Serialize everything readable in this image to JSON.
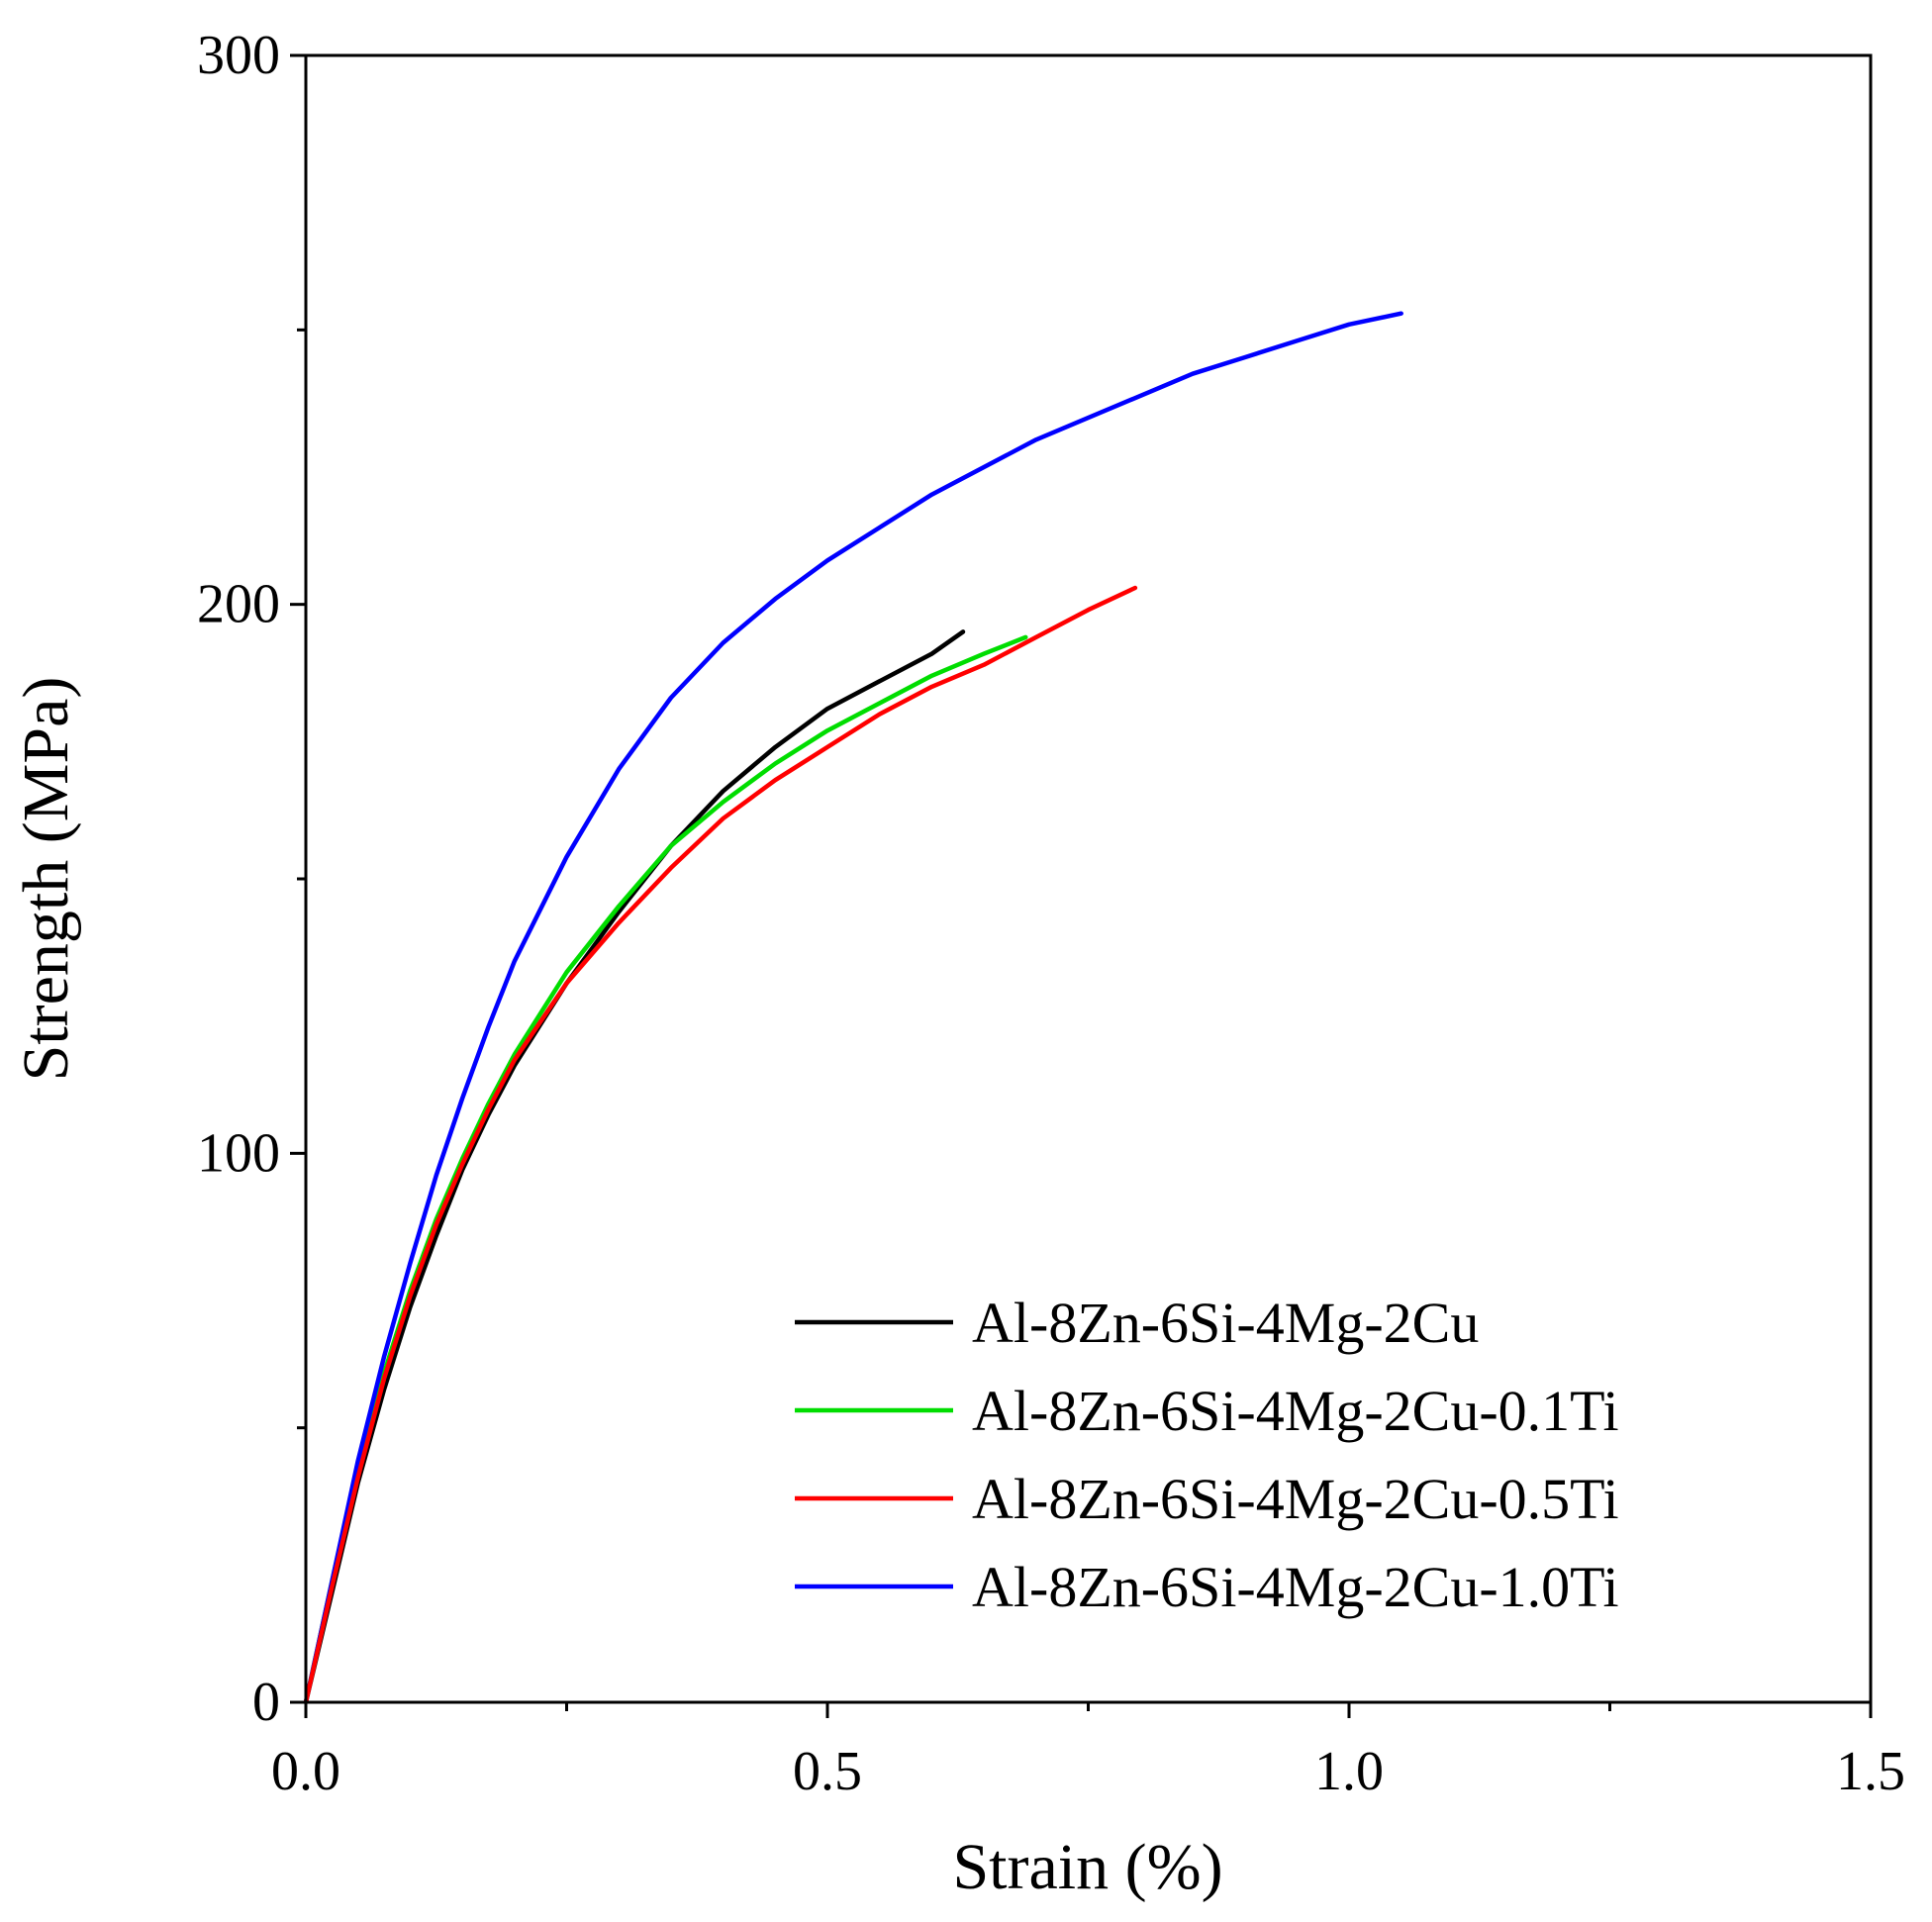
{
  "chart_data": {
    "type": "line",
    "title": "",
    "xlabel": "Strain (%)",
    "ylabel": "Strength (MPa)",
    "xlim": [
      0,
      1.5
    ],
    "ylim": [
      0,
      300
    ],
    "x_ticks": [
      0.0,
      0.5,
      1.0,
      1.5
    ],
    "x_tick_labels": [
      "0.0",
      "0.5",
      "1.0",
      "1.5"
    ],
    "x_minor_ticks": [
      0.25,
      0.75,
      1.25
    ],
    "y_ticks": [
      0,
      100,
      200,
      300
    ],
    "y_tick_labels": [
      "0",
      "100",
      "200",
      "300"
    ],
    "y_minor_ticks": [
      50,
      150,
      250
    ],
    "grid": false,
    "legend_position": "bottom-right",
    "series": [
      {
        "name": "Al-8Zn-6Si-4Mg-2Cu",
        "color": "#000000",
        "x": [
          0.0,
          0.025,
          0.05,
          0.075,
          0.1,
          0.125,
          0.15,
          0.175,
          0.2,
          0.25,
          0.3,
          0.35,
          0.4,
          0.45,
          0.5,
          0.55,
          0.6,
          0.63
        ],
        "y": [
          0,
          20,
          40,
          57,
          72,
          85,
          97,
          107,
          116,
          131,
          144,
          156,
          166,
          174,
          181,
          186,
          191,
          195
        ]
      },
      {
        "name": "Al-8Zn-6Si-4Mg-2Cu-0.1Ti",
        "color": "#00dd00",
        "x": [
          0.0,
          0.025,
          0.05,
          0.075,
          0.1,
          0.125,
          0.15,
          0.175,
          0.2,
          0.25,
          0.3,
          0.35,
          0.4,
          0.45,
          0.5,
          0.55,
          0.6,
          0.65,
          0.69
        ],
        "y": [
          0,
          22,
          43,
          60,
          75,
          88,
          99,
          109,
          118,
          133,
          145,
          156,
          164,
          171,
          177,
          182,
          187,
          191,
          194
        ]
      },
      {
        "name": "Al-8Zn-6Si-4Mg-2Cu-0.5Ti",
        "color": "#ff0000",
        "x": [
          0.0,
          0.025,
          0.05,
          0.075,
          0.1,
          0.125,
          0.15,
          0.175,
          0.2,
          0.25,
          0.3,
          0.35,
          0.4,
          0.45,
          0.5,
          0.55,
          0.6,
          0.65,
          0.7,
          0.75,
          0.795
        ],
        "y": [
          0,
          21,
          41,
          59,
          74,
          87,
          98,
          108,
          117,
          131,
          142,
          152,
          161,
          168,
          174,
          180,
          185,
          189,
          194,
          199,
          203
        ]
      },
      {
        "name": "Al-8Zn-6Si-4Mg-2Cu-1.0Ti",
        "color": "#0000ff",
        "x": [
          0.0,
          0.025,
          0.05,
          0.075,
          0.1,
          0.125,
          0.15,
          0.175,
          0.2,
          0.25,
          0.3,
          0.35,
          0.4,
          0.45,
          0.5,
          0.55,
          0.6,
          0.65,
          0.7,
          0.75,
          0.8,
          0.85,
          0.9,
          0.95,
          1.0,
          1.05
        ],
        "y": [
          0,
          22,
          44,
          63,
          80,
          96,
          110,
          123,
          135,
          154,
          170,
          183,
          193,
          201,
          208,
          214,
          220,
          225,
          230,
          234,
          238,
          242,
          245,
          248,
          251,
          253
        ]
      }
    ]
  }
}
